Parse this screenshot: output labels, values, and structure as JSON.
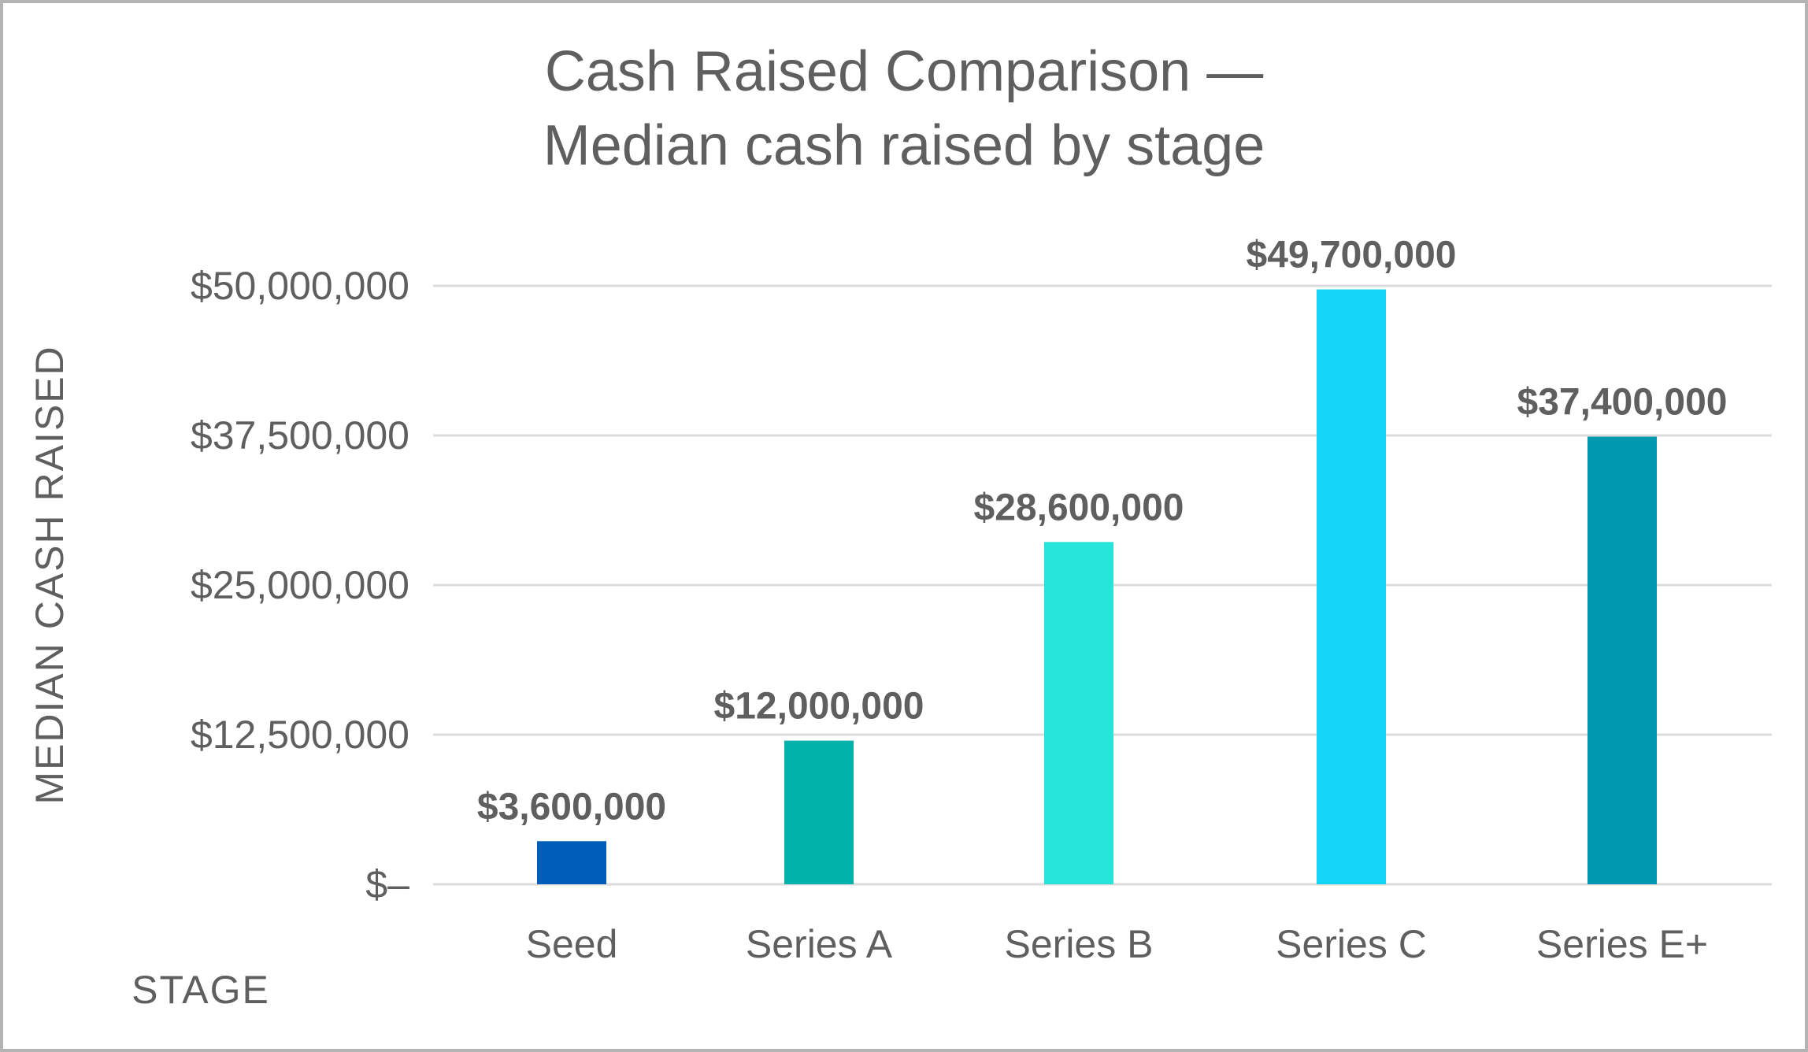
{
  "chart_data": {
    "type": "bar",
    "title": "Cash Raised Comparison —",
    "subtitle": "Median cash raised by stage",
    "xlabel": "STAGE",
    "ylabel": "MEDIAN CASH RAISED",
    "categories": [
      "Seed",
      "Series A",
      "Series B",
      "Series C",
      "Series E+"
    ],
    "values": [
      3600000,
      12000000,
      28600000,
      49700000,
      37400000
    ],
    "data_labels": [
      "$3,600,000",
      "$12,000,000",
      "$28,600,000",
      "$49,700,000",
      "$37,400,000"
    ],
    "colors": [
      "#005eb8",
      "#00b2a9",
      "#26e4d9",
      "#15d5f6",
      "#0097b0"
    ],
    "ylim": [
      0,
      50000000
    ],
    "yticks": [
      0,
      12500000,
      25000000,
      37500000,
      50000000
    ],
    "ytick_labels": [
      "$–",
      "$12,500,000",
      "$25,000,000",
      "$37,500,000",
      "$50,000,000"
    ],
    "grid": true,
    "legend": "none"
  }
}
